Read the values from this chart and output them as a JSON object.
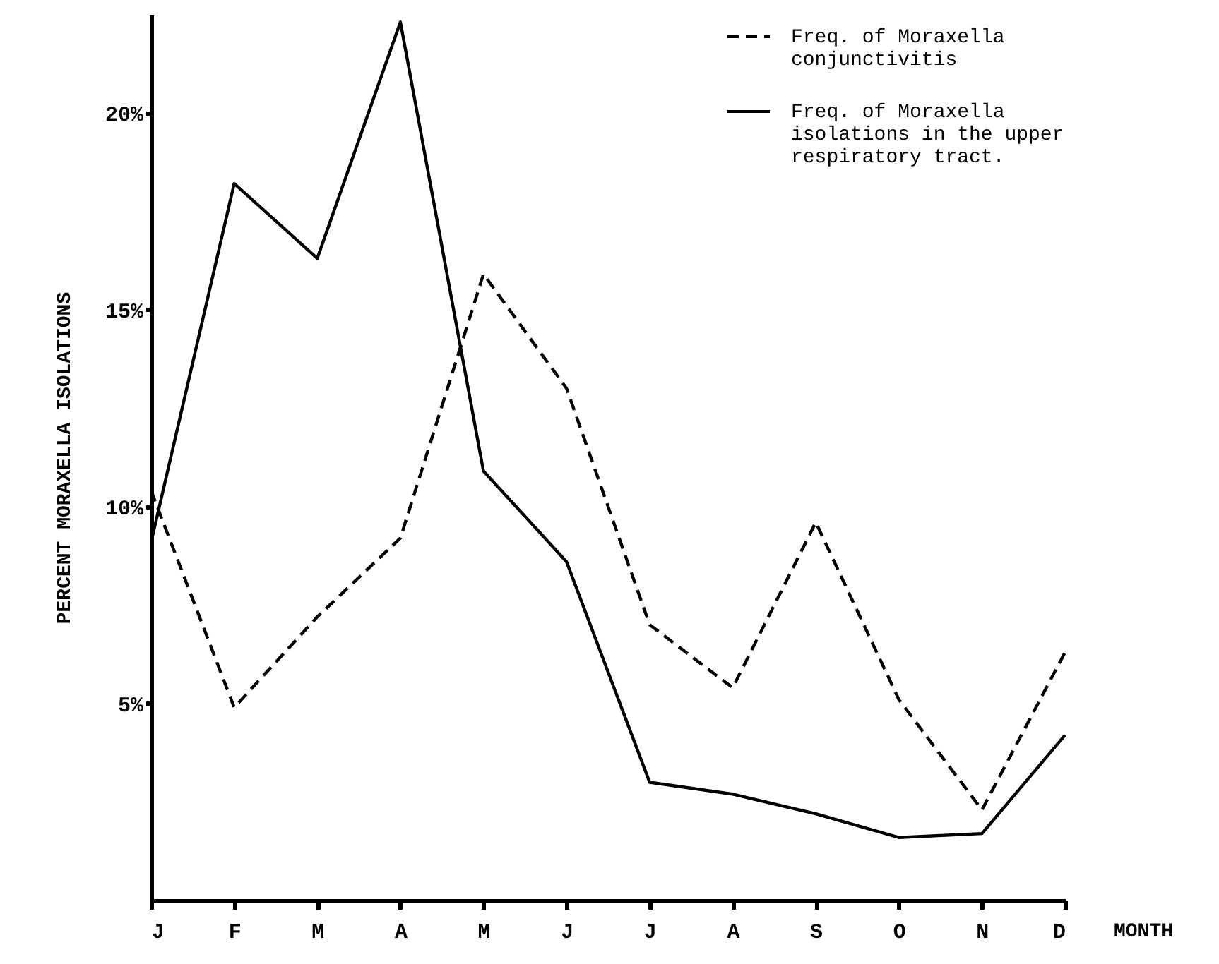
{
  "chart_data": {
    "type": "line",
    "xlabel": "MONTH",
    "ylabel": "PERCENT MORAXELLA ISOLATIONS",
    "categories": [
      "J",
      "F",
      "M",
      "A",
      "M",
      "J",
      "J",
      "A",
      "S",
      "O",
      "N",
      "D"
    ],
    "series": [
      {
        "name": "Freq. of Moraxella conjunctivitis",
        "color": "#000000",
        "line_style": "dashed",
        "values": [
          10.4,
          4.9,
          7.2,
          9.2,
          15.9,
          13.0,
          7.0,
          5.4,
          9.6,
          5.1,
          2.3,
          6.3
        ]
      },
      {
        "name": "Freq. of Moraxella isolations in the upper respiratory tract.",
        "color": "#000000",
        "line_style": "solid",
        "values": [
          9.1,
          18.2,
          16.3,
          22.3,
          10.9,
          8.6,
          3.0,
          2.7,
          2.2,
          1.6,
          1.7,
          4.2
        ]
      }
    ],
    "ylim": [
      0,
      22.5
    ],
    "yticks": [
      {
        "value": 5,
        "label": "5%"
      },
      {
        "value": 10,
        "label": "10%"
      },
      {
        "value": 15,
        "label": "15%"
      },
      {
        "value": 20,
        "label": "20%"
      }
    ],
    "grid": false,
    "legend": "top right",
    "marker": "none"
  }
}
